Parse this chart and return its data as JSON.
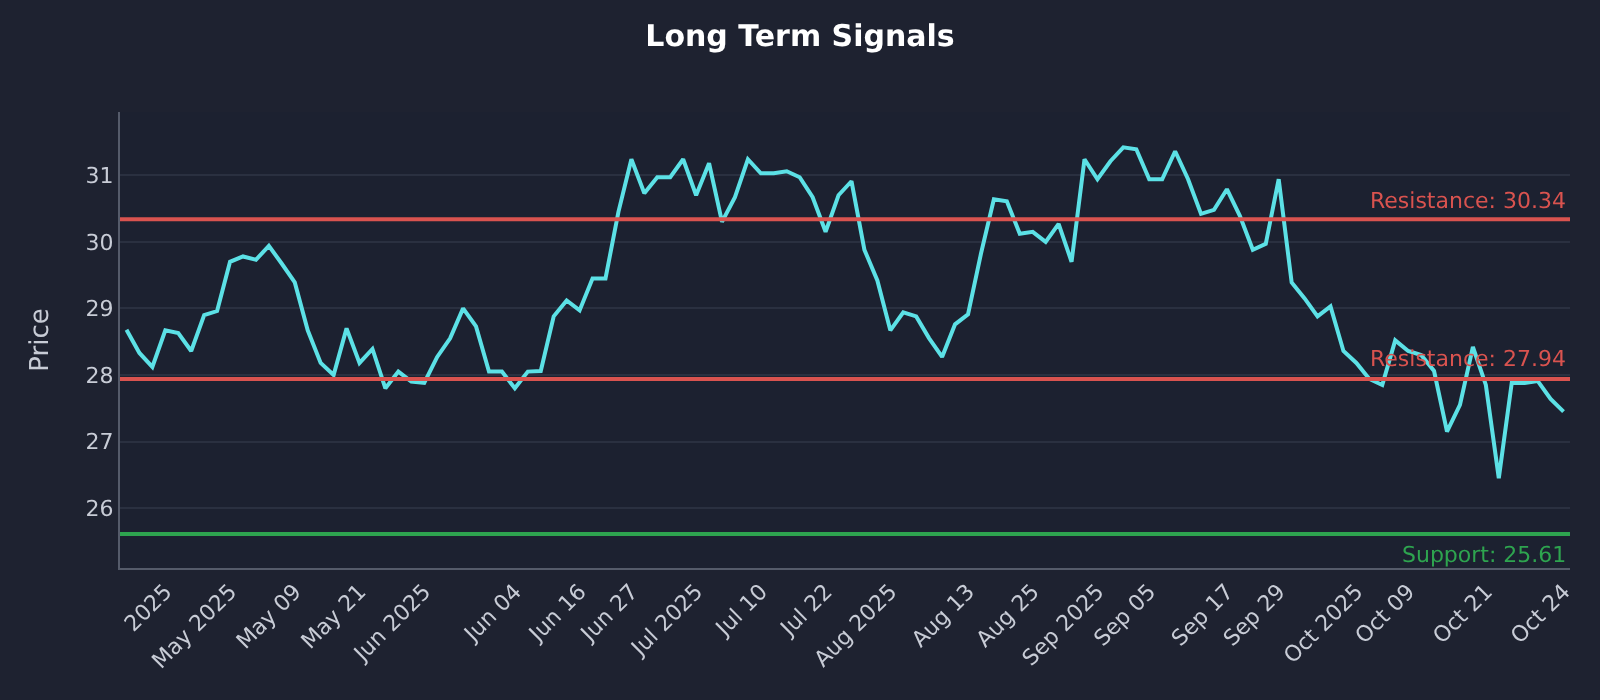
{
  "chart_data": {
    "type": "line",
    "title": "Long Term Signals",
    "ylabel": "Price",
    "categories": [
      null,
      null,
      null,
      "2025",
      null,
      null,
      null,
      null,
      "May 2025",
      null,
      null,
      null,
      null,
      "May 09",
      null,
      null,
      null,
      null,
      "May 21",
      null,
      null,
      null,
      null,
      "Jun 2025",
      null,
      null,
      null,
      null,
      null,
      null,
      "Jun 04",
      null,
      null,
      null,
      null,
      "Jun 16",
      null,
      null,
      null,
      "Jun 27",
      null,
      null,
      null,
      null,
      "Jul 2025",
      null,
      null,
      null,
      null,
      "Jul 10",
      null,
      null,
      null,
      null,
      "Jul 22",
      null,
      null,
      null,
      null,
      "Aug 2025",
      null,
      null,
      null,
      null,
      null,
      "Aug 13",
      null,
      null,
      null,
      null,
      "Aug 25",
      null,
      null,
      null,
      null,
      "Sep 2025",
      null,
      null,
      null,
      "Sep 05",
      null,
      null,
      null,
      null,
      null,
      "Sep 17",
      null,
      null,
      null,
      "Sep 29",
      null,
      null,
      null,
      null,
      null,
      "Oct 2025",
      null,
      null,
      null,
      "Oct 09",
      null,
      null,
      null,
      null,
      null,
      "Oct 21",
      null,
      null,
      null,
      null,
      null,
      "Oct 24"
    ],
    "series": [
      {
        "color": "#5ce1e6",
        "values": [
          28.68,
          28.33,
          28.12,
          28.67,
          28.63,
          28.36,
          28.9,
          28.96,
          29.7,
          29.78,
          29.73,
          29.94,
          29.67,
          29.39,
          28.67,
          28.18,
          28.0,
          28.7,
          28.18,
          28.39,
          27.8,
          28.05,
          27.9,
          27.88,
          28.27,
          28.55,
          29.0,
          28.73,
          28.05,
          28.05,
          27.8,
          28.05,
          28.06,
          28.88,
          29.12,
          28.97,
          29.45,
          29.45,
          30.45,
          31.24,
          30.73,
          30.97,
          30.97,
          31.24,
          30.7,
          31.18,
          30.3,
          30.67,
          31.24,
          31.03,
          31.03,
          31.06,
          30.97,
          30.67,
          30.15,
          30.7,
          30.91,
          29.88,
          29.42,
          28.67,
          28.94,
          28.88,
          28.55,
          28.27,
          28.76,
          28.91,
          29.82,
          30.64,
          30.61,
          30.12,
          30.15,
          30.0,
          30.27,
          29.7,
          31.24,
          30.94,
          31.21,
          31.42,
          31.39,
          30.94,
          30.94,
          31.36,
          30.94,
          30.42,
          30.48,
          30.79,
          30.39,
          29.88,
          29.97,
          30.94,
          29.39,
          29.15,
          28.88,
          29.03,
          28.36,
          28.18,
          27.94,
          27.85,
          28.52,
          28.36,
          28.3,
          28.06,
          27.15,
          27.55,
          28.42,
          27.85,
          26.45,
          27.88,
          27.88,
          27.91,
          27.64,
          27.45
        ]
      }
    ],
    "ylim": [
      25.1,
      31.95
    ],
    "yticks": [
      26,
      27,
      28,
      29,
      30,
      31
    ],
    "grid": "y",
    "ref_lines": [
      {
        "axis": "y",
        "value": 30.34,
        "label": "Resistance: 30.34",
        "color": "#d9534f"
      },
      {
        "axis": "y",
        "value": 27.94,
        "label": "Resistance: 27.94",
        "color": "#d9534f"
      },
      {
        "axis": "y",
        "value": 25.61,
        "label": "Support: 25.61",
        "color": "#2ea44f"
      }
    ]
  }
}
